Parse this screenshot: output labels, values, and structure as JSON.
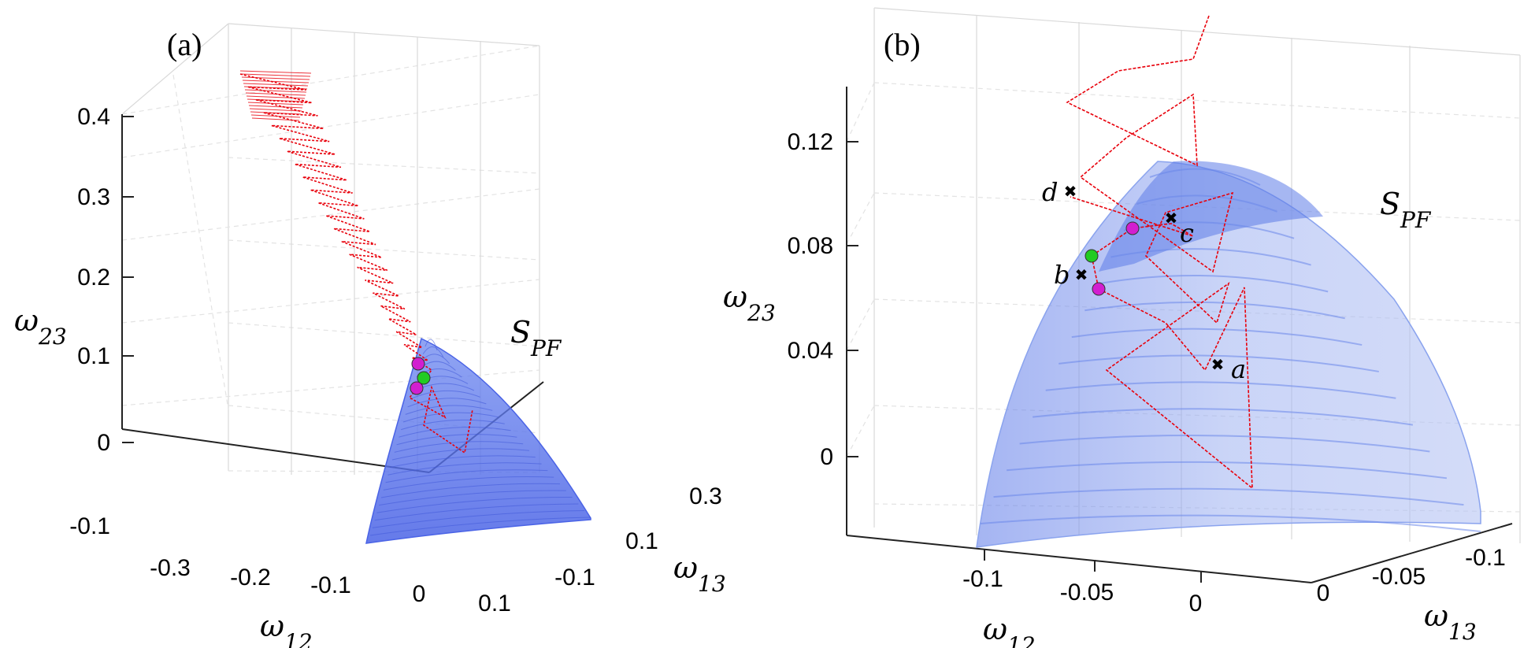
{
  "chart_data": [
    {
      "panel": "(a)",
      "type": "scatter",
      "title": "",
      "xlabel": "ω12",
      "ylabel": "ω13",
      "zlabel": "ω23",
      "x_ticks": [
        "-0.3",
        "-0.2",
        "-0.1",
        "0",
        "0.1"
      ],
      "y_ticks": [
        "-0.1",
        "0.1",
        "0.3"
      ],
      "z_ticks": [
        "-0.1",
        "0",
        "0.1",
        "0.2",
        "0.3",
        "0.4"
      ],
      "surface_label": "SPF",
      "series": [
        {
          "name": "trajectory",
          "color": "#e8000b"
        },
        {
          "name": "surface",
          "color": "#4a6cf0"
        },
        {
          "name": "points",
          "colors": [
            "#d21fd0",
            "#22cc22",
            "#d21fd0"
          ]
        }
      ]
    },
    {
      "panel": "(b)",
      "type": "scatter",
      "title": "",
      "xlabel": "ω12",
      "ylabel": "ω13",
      "zlabel": "ω23",
      "x_ticks": [
        "-0.1",
        "-0.05",
        "0"
      ],
      "y_ticks": [
        "0",
        "-0.05",
        "-0.1"
      ],
      "z_ticks": [
        "0",
        "0.04",
        "0.08",
        "0.12"
      ],
      "surface_label": "SPF",
      "annotations": [
        "a",
        "b",
        "c",
        "d"
      ],
      "series": [
        {
          "name": "trajectory",
          "color": "#e8000b"
        },
        {
          "name": "surface",
          "color": "#8aa3ee"
        },
        {
          "name": "points",
          "colors": [
            "#d21fd0",
            "#22cc22",
            "#d21fd0"
          ]
        }
      ]
    }
  ]
}
